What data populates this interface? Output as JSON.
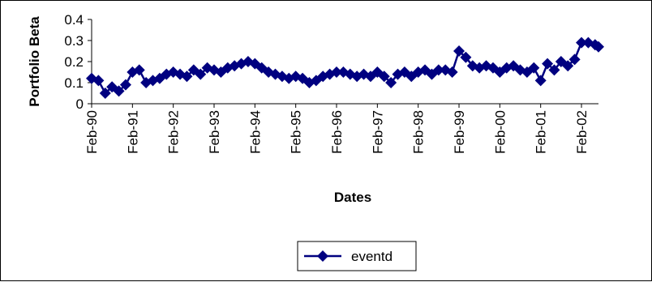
{
  "chart_data": {
    "type": "line",
    "xlabel": "Dates",
    "ylabel": "Portfolio Beta",
    "ylim": [
      0,
      0.4
    ],
    "yticks": [
      "0",
      "0.1",
      "0.2",
      "0.3",
      "0.4"
    ],
    "x_tick_labels": [
      "Feb-90",
      "Feb-91",
      "Feb-92",
      "Feb-93",
      "Feb-94",
      "Feb-95",
      "Feb-96",
      "Feb-97",
      "Feb-98",
      "Feb-99",
      "Feb-00",
      "Feb-01",
      "Feb-02"
    ],
    "x_range": [
      "Feb-90",
      "Jul-02"
    ],
    "grid": false,
    "legend_position": "bottom-center",
    "marker": "diamond",
    "series_color": "#000080",
    "series": [
      {
        "name": "eventd",
        "x": [
          "Feb-90",
          "Apr-90",
          "Jun-90",
          "Aug-90",
          "Oct-90",
          "Dec-90",
          "Feb-91",
          "Apr-91",
          "Jun-91",
          "Aug-91",
          "Oct-91",
          "Dec-91",
          "Feb-92",
          "Apr-92",
          "Jun-92",
          "Aug-92",
          "Oct-92",
          "Dec-92",
          "Feb-93",
          "Apr-93",
          "Jun-93",
          "Aug-93",
          "Oct-93",
          "Dec-93",
          "Feb-94",
          "Apr-94",
          "Jun-94",
          "Aug-94",
          "Oct-94",
          "Dec-94",
          "Feb-95",
          "Apr-95",
          "Jun-95",
          "Aug-95",
          "Oct-95",
          "Dec-95",
          "Feb-96",
          "Apr-96",
          "Jun-96",
          "Aug-96",
          "Oct-96",
          "Dec-96",
          "Feb-97",
          "Apr-97",
          "Jun-97",
          "Aug-97",
          "Oct-97",
          "Dec-97",
          "Feb-98",
          "Apr-98",
          "Jun-98",
          "Aug-98",
          "Oct-98",
          "Dec-98",
          "Feb-99",
          "Apr-99",
          "Jun-99",
          "Aug-99",
          "Oct-99",
          "Dec-99",
          "Feb-00",
          "Apr-00",
          "Jun-00",
          "Aug-00",
          "Oct-00",
          "Dec-00",
          "Feb-01",
          "Apr-01",
          "Jun-01",
          "Aug-01",
          "Oct-01",
          "Dec-01",
          "Feb-02",
          "Apr-02",
          "Jun-02",
          "Jul-02"
        ],
        "values": [
          0.12,
          0.11,
          0.05,
          0.08,
          0.06,
          0.09,
          0.15,
          0.16,
          0.1,
          0.11,
          0.12,
          0.14,
          0.15,
          0.14,
          0.13,
          0.16,
          0.14,
          0.17,
          0.16,
          0.15,
          0.17,
          0.18,
          0.19,
          0.2,
          0.19,
          0.17,
          0.15,
          0.14,
          0.13,
          0.12,
          0.13,
          0.12,
          0.1,
          0.11,
          0.13,
          0.14,
          0.15,
          0.15,
          0.14,
          0.13,
          0.14,
          0.13,
          0.15,
          0.13,
          0.1,
          0.14,
          0.15,
          0.13,
          0.15,
          0.16,
          0.14,
          0.16,
          0.16,
          0.15,
          0.25,
          0.22,
          0.18,
          0.17,
          0.18,
          0.17,
          0.15,
          0.17,
          0.18,
          0.16,
          0.15,
          0.17,
          0.11,
          0.19,
          0.16,
          0.2,
          0.18,
          0.21,
          0.29,
          0.29,
          0.28,
          0.27
        ]
      }
    ]
  }
}
